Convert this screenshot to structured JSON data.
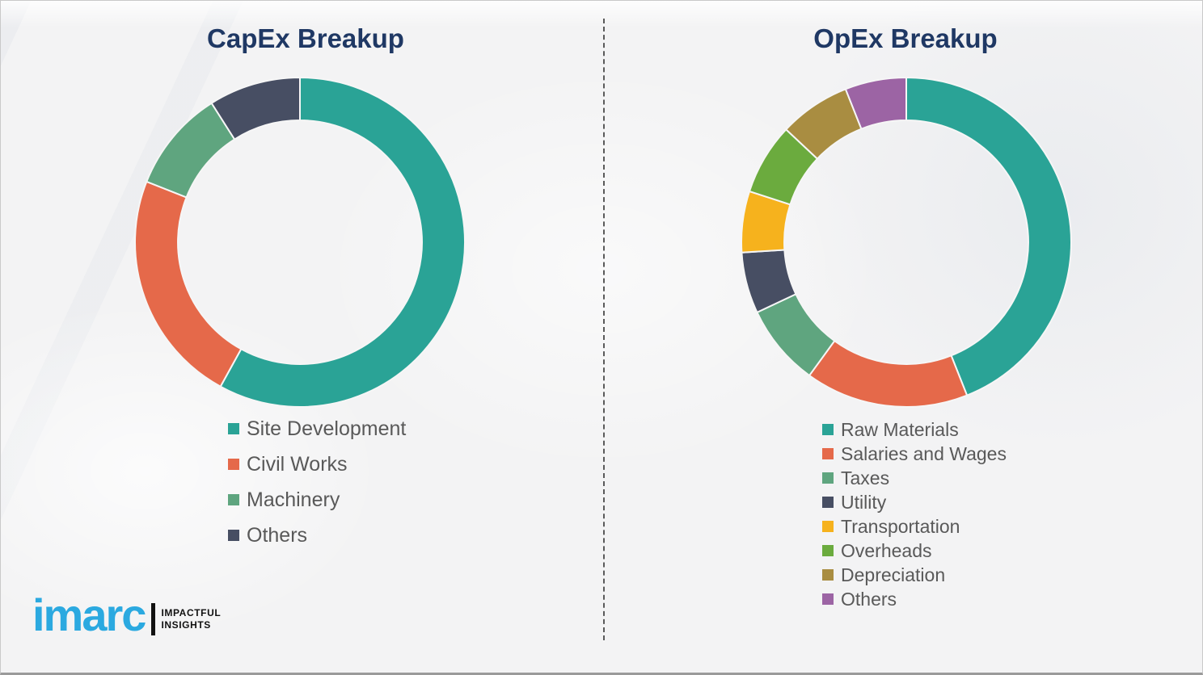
{
  "page": {
    "background_color": "#f3f3f4",
    "divider_style": "vertical-dashed"
  },
  "chart_data": [
    {
      "type": "donut",
      "title": "CapEx Breakup",
      "title_color": "#1f3864",
      "direction": "clockwise",
      "start_angle_deg": 0,
      "inner_radius_ratio": 0.74,
      "legend_position": "below",
      "segments": [
        {
          "label": "Site Development",
          "value": 58,
          "color": "#2aa396"
        },
        {
          "label": "Civil Works",
          "value": 23,
          "color": "#e5694a"
        },
        {
          "label": "Machinery",
          "value": 10,
          "color": "#5fa57f"
        },
        {
          "label": "Others",
          "value": 9,
          "color": "#474e63"
        }
      ]
    },
    {
      "type": "donut",
      "title": "OpEx Breakup",
      "title_color": "#1f3864",
      "direction": "clockwise",
      "start_angle_deg": 0,
      "inner_radius_ratio": 0.74,
      "legend_position": "below",
      "segments": [
        {
          "label": "Raw Materials",
          "value": 44,
          "color": "#2aa396"
        },
        {
          "label": "Salaries and Wages",
          "value": 16,
          "color": "#e5694a"
        },
        {
          "label": "Taxes",
          "value": 8,
          "color": "#5fa57f"
        },
        {
          "label": "Utility",
          "value": 6,
          "color": "#474e63"
        },
        {
          "label": "Transportation",
          "value": 6,
          "color": "#f6b21d"
        },
        {
          "label": "Overheads",
          "value": 7,
          "color": "#6bab3e"
        },
        {
          "label": "Depreciation",
          "value": 7,
          "color": "#a98d41"
        },
        {
          "label": "Others",
          "value": 6,
          "color": "#9c64a4"
        }
      ]
    }
  ],
  "logo": {
    "brand": "imarc",
    "brand_color": "#2ba9e0",
    "tagline_line1": "IMPACTFUL",
    "tagline_line2": "INSIGHTS"
  }
}
